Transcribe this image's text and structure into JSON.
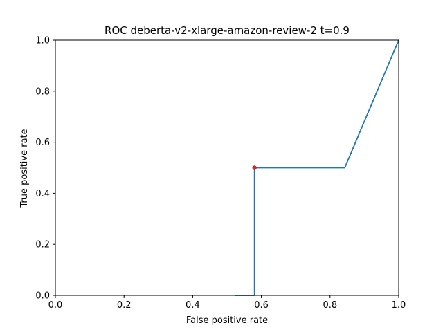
{
  "chart_data": {
    "type": "line",
    "title": "ROC deberta-v2-xlarge-amazon-review-2 t=0.9",
    "xlabel": "False positive rate",
    "ylabel": "True positive rate",
    "xlim": [
      0.0,
      1.0
    ],
    "ylim": [
      0.0,
      1.0
    ],
    "xticks": [
      "0.0",
      "0.2",
      "0.4",
      "0.6",
      "0.8",
      "1.0"
    ],
    "yticks": [
      "0.0",
      "0.2",
      "0.4",
      "0.6",
      "0.8",
      "1.0"
    ],
    "grid": false,
    "series": [
      {
        "x": [
          0.524,
          0.58,
          0.58,
          0.843,
          1.0
        ],
        "y": [
          0.0,
          0.0,
          0.5,
          0.5,
          1.0
        ],
        "color": "#1f77b4"
      }
    ],
    "marker": {
      "x": 0.58,
      "y": 0.5,
      "color": "#d62728"
    }
  }
}
